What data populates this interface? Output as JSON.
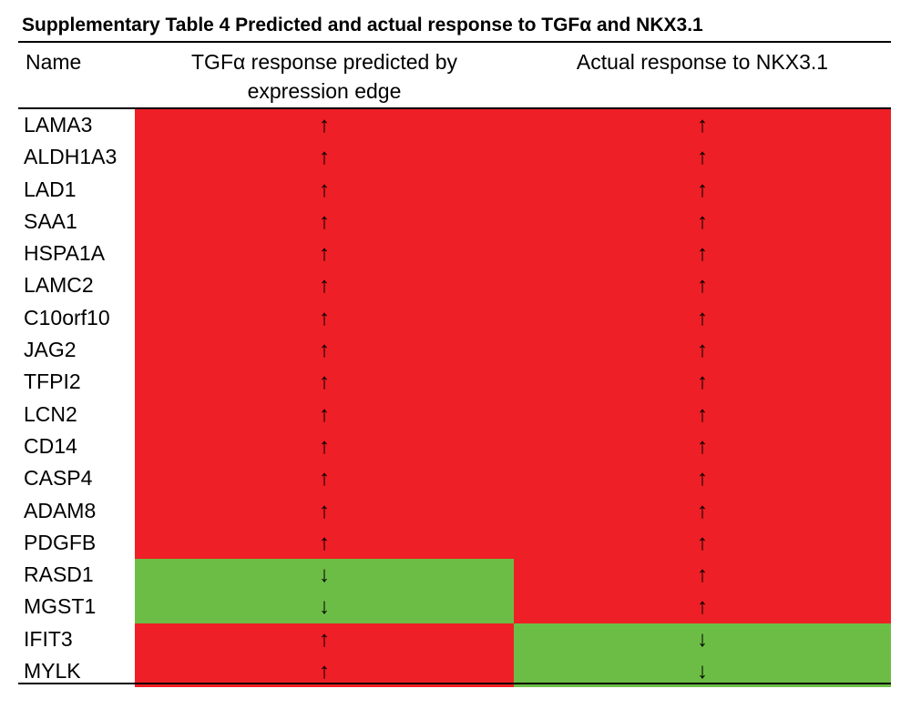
{
  "caption": "Supplementary Table 4  Predicted and actual response to TGFα and NKX3.1",
  "headers": {
    "name": "Name",
    "predicted_line1": "TGFα response predicted by",
    "predicted_line2": "expression edge",
    "actual": "Actual response to NKX3.1"
  },
  "colors": {
    "up": "#ee1f26",
    "down": "#6cbd45"
  },
  "rows": [
    {
      "name": "LAMA3",
      "predicted": "↑",
      "actual": "↑"
    },
    {
      "name": "ALDH1A3",
      "predicted": "↑",
      "actual": "↑"
    },
    {
      "name": "LAD1",
      "predicted": "↑",
      "actual": "↑"
    },
    {
      "name": "SAA1",
      "predicted": "↑",
      "actual": "↑"
    },
    {
      "name": "HSPA1A",
      "predicted": "↑",
      "actual": "↑"
    },
    {
      "name": "LAMC2",
      "predicted": "↑",
      "actual": "↑"
    },
    {
      "name": "C10orf10",
      "predicted": "↑",
      "actual": "↑"
    },
    {
      "name": "JAG2",
      "predicted": "↑",
      "actual": "↑"
    },
    {
      "name": "TFPI2",
      "predicted": "↑",
      "actual": "↑"
    },
    {
      "name": "LCN2",
      "predicted": "↑",
      "actual": "↑"
    },
    {
      "name": "CD14",
      "predicted": "↑",
      "actual": "↑"
    },
    {
      "name": "CASP4",
      "predicted": "↑",
      "actual": "↑"
    },
    {
      "name": "ADAM8",
      "predicted": "↑",
      "actual": "↑"
    },
    {
      "name": "PDGFB",
      "predicted": "↑",
      "actual": "↑"
    },
    {
      "name": "RASD1",
      "predicted": "↓",
      "actual": "↑"
    },
    {
      "name": "MGST1",
      "predicted": "↓",
      "actual": "↑"
    },
    {
      "name": "IFIT3",
      "predicted": "↑",
      "actual": "↓"
    },
    {
      "name": "MYLK",
      "predicted": "↑",
      "actual": "↓"
    }
  ]
}
